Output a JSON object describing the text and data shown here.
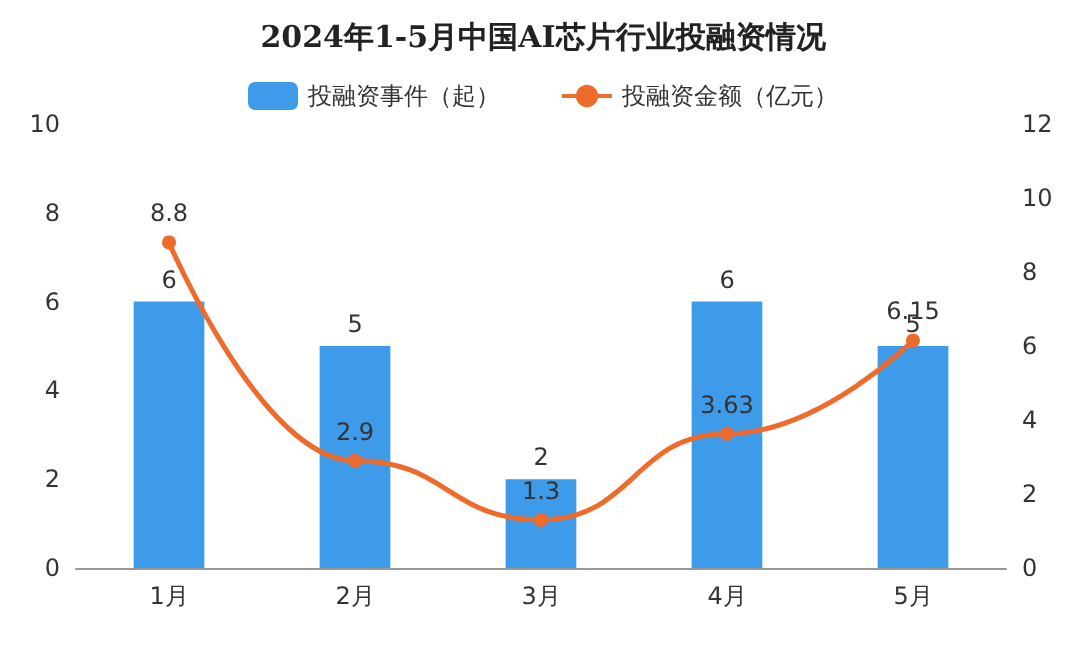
{
  "chart_data": {
    "type": "bar",
    "title": "2024年1-5月中国AI芯片行业投融资情况",
    "categories": [
      "1月",
      "2月",
      "3月",
      "4月",
      "5月"
    ],
    "series": [
      {
        "name": "投融资事件（起）",
        "color": "#3d9be9",
        "values": [
          6,
          5,
          2,
          6,
          5
        ]
      },
      {
        "name": "投融资金额（亿元）",
        "type": "line",
        "axis": "y2",
        "color": "#ee6b2c",
        "values": [
          8.8,
          2.9,
          1.3,
          3.63,
          6.15
        ],
        "marker": "circle"
      }
    ],
    "ylim": [
      0,
      10
    ],
    "yticks": [
      0,
      2,
      4,
      6,
      8,
      10
    ],
    "y2lim": [
      0,
      12
    ],
    "y2ticks": [
      0,
      2,
      4,
      6,
      8,
      10,
      12
    ],
    "data_labels": true,
    "legend": "top",
    "grid": false
  }
}
